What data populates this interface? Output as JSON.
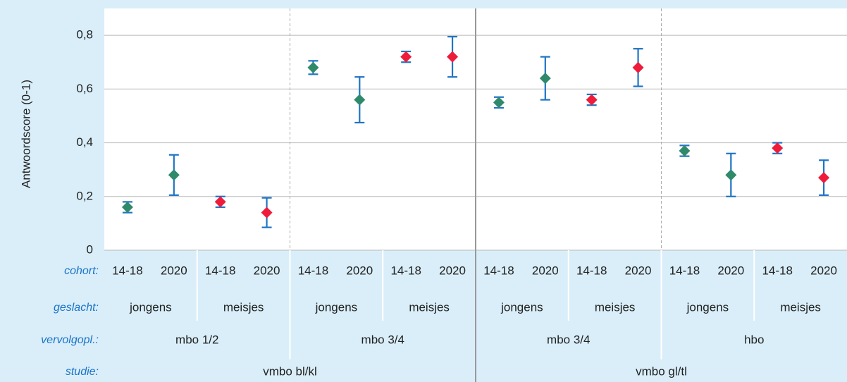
{
  "chart_data": {
    "type": "errorbar",
    "y_axis_label": "Antwoordscore (0-1)",
    "ylim": [
      0,
      0.9
    ],
    "yticks": [
      0,
      {
        "value": 0.2,
        "label": "0,2"
      },
      {
        "value": 0.4,
        "label": "0,4"
      },
      {
        "value": 0.6,
        "label": "0,6"
      },
      {
        "value": 0.8,
        "label": "0,8"
      }
    ],
    "grid": true,
    "values": [
      0.16,
      0.28,
      0.18,
      0.14,
      0.68,
      0.56,
      0.72,
      0.72,
      0.55,
      0.64,
      0.56,
      0.68,
      0.37,
      0.28,
      0.38,
      0.27
    ],
    "errors": [
      0.02,
      0.075,
      0.02,
      0.055,
      0.025,
      0.085,
      0.02,
      0.075,
      0.02,
      0.08,
      0.02,
      0.07,
      0.02,
      0.08,
      0.02,
      0.065
    ],
    "colors": [
      "#2f8a6c",
      "#2f8a6c",
      "#ee1c3a",
      "#ee1c3a",
      "#2f8a6c",
      "#2f8a6c",
      "#ee1c3a",
      "#ee1c3a",
      "#2f8a6c",
      "#2f8a6c",
      "#ee1c3a",
      "#ee1c3a",
      "#2f8a6c",
      "#2f8a6c",
      "#ee1c3a",
      "#ee1c3a"
    ],
    "error_color": "#1f74c4",
    "category_levels": [
      {
        "label": "cohort:",
        "categories": [
          "14-18",
          "2020",
          "14-18",
          "2020",
          "14-18",
          "2020",
          "14-18",
          "2020",
          "14-18",
          "2020",
          "14-18",
          "2020",
          "14-18",
          "2020",
          "14-18",
          "2020"
        ]
      },
      {
        "label": "geslacht:",
        "categories": [
          "jongens",
          "meisjes",
          "jongens",
          "meisjes",
          "jongens",
          "meisjes",
          "jongens",
          "meisjes"
        ]
      },
      {
        "label": "vervolgopl.:",
        "categories": [
          "mbo 1/2",
          "mbo 3/4",
          "mbo 3/4",
          "hbo"
        ]
      },
      {
        "label": "studie:",
        "categories": [
          "vmbo bl/kl",
          "vmbo gl/tl"
        ]
      }
    ]
  }
}
